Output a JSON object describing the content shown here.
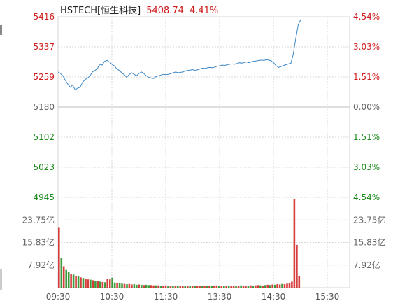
{
  "header": {
    "symbol": "HSTECH[恒生科技]",
    "price": "5408.74",
    "change_pct": "4.41%"
  },
  "colors": {
    "up": "#d01c1c",
    "down": "#1a8a1a",
    "neutral": "#666666",
    "line": "#3b86c5",
    "grid": "#d6d6d6"
  },
  "chart_data": [
    {
      "type": "line",
      "title": "",
      "x_ticks": [
        "09:30",
        "10:30",
        "11:30",
        "13:30",
        "14:30",
        "15:30"
      ],
      "y_ticks_left": [
        "5416",
        "5337",
        "5259",
        "5180",
        "5102",
        "5023",
        "4945"
      ],
      "y_ticks_right": [
        "4.54%",
        "3.03%",
        "1.51%",
        "0.00%",
        "1.51%",
        "3.03%",
        "4.54%"
      ],
      "ylim": [
        4945,
        5416
      ],
      "base_value": 5180,
      "series": [
        {
          "values": [
            5272,
            5268,
            5262,
            5250,
            5240,
            5232,
            5238,
            5225,
            5230,
            5232,
            5245,
            5252,
            5256,
            5262,
            5272,
            5276,
            5280,
            5292,
            5290,
            5300,
            5302,
            5298,
            5292,
            5288,
            5280,
            5276,
            5270,
            5265,
            5258,
            5265,
            5270,
            5266,
            5262,
            5268,
            5272,
            5268,
            5262,
            5258,
            5256,
            5255,
            5260,
            5262,
            5264,
            5266,
            5265,
            5266,
            5268,
            5270,
            5272,
            5270,
            5271,
            5272,
            5275,
            5276,
            5277,
            5278,
            5276,
            5278,
            5280,
            5282,
            5281,
            5283,
            5284,
            5283,
            5285,
            5287,
            5288,
            5290,
            5289,
            5291,
            5292,
            5293,
            5292,
            5294,
            5296,
            5295,
            5297,
            5298,
            5296,
            5299,
            5300,
            5301,
            5302,
            5303,
            5302,
            5304,
            5303,
            5301,
            5296,
            5288,
            5284,
            5286,
            5289,
            5291,
            5293,
            5295,
            5320,
            5360,
            5395,
            5408.74
          ]
        }
      ]
    },
    {
      "type": "bar",
      "title": "",
      "unit": "亿",
      "y_ticks": [
        "23.75亿",
        "15.83亿",
        "7.92亿"
      ],
      "ylim": [
        0,
        31.67
      ],
      "volumes": [
        21.0,
        10.5,
        7.5,
        6.2,
        5.4,
        4.8,
        4.6,
        4.1,
        3.9,
        3.6,
        3.4,
        3.1,
        2.9,
        2.8,
        2.6,
        2.4,
        2.3,
        2.1,
        2.0,
        1.9,
        3.2,
        2.9,
        3.5,
        1.8,
        1.6,
        1.5,
        1.4,
        1.3,
        1.2,
        1.3,
        1.1,
        1.2,
        1.0,
        1.1,
        1.0,
        0.9,
        1.0,
        0.9,
        0.9,
        0.8,
        0.8,
        0.8,
        0.7,
        0.7,
        0.8,
        0.7,
        0.7,
        0.6,
        0.7,
        0.6,
        0.6,
        0.6,
        0.6,
        0.5,
        0.6,
        0.5,
        0.6,
        0.5,
        0.5,
        0.6,
        0.6,
        0.5,
        0.6,
        0.7,
        0.6,
        0.8,
        0.7,
        0.6,
        0.6,
        0.7,
        0.6,
        0.6,
        0.7,
        0.6,
        0.7,
        0.8,
        0.7,
        0.6,
        0.7,
        0.8,
        0.7,
        0.8,
        0.9,
        0.8,
        0.7,
        0.9,
        1.0,
        0.9,
        1.1,
        1.0,
        1.2,
        1.1,
        1.3,
        1.2,
        1.4,
        1.6,
        2.1,
        31.0,
        15.0,
        4.0
      ],
      "directions": [
        "up",
        "down",
        "up",
        "down",
        "down",
        "up",
        "down",
        "up",
        "down",
        "up",
        "down",
        "up",
        "up",
        "down",
        "up",
        "down",
        "up",
        "down",
        "up",
        "down",
        "up",
        "up",
        "down",
        "down",
        "up",
        "down",
        "down",
        "up",
        "down",
        "up",
        "up",
        "down",
        "down",
        "up",
        "down",
        "up",
        "down",
        "down",
        "up",
        "up",
        "down",
        "up",
        "down",
        "up",
        "up",
        "down",
        "up",
        "down",
        "up",
        "down",
        "up",
        "up",
        "down",
        "up",
        "down",
        "up",
        "down",
        "up",
        "up",
        "down",
        "up",
        "down",
        "up",
        "down",
        "up",
        "up",
        "down",
        "up",
        "down",
        "up",
        "down",
        "up",
        "up",
        "down",
        "up",
        "down",
        "up",
        "up",
        "down",
        "up",
        "down",
        "up",
        "up",
        "down",
        "up",
        "down",
        "up",
        "down",
        "up",
        "down",
        "up",
        "up",
        "down",
        "up",
        "up",
        "up",
        "up",
        "up",
        "up",
        "up"
      ]
    }
  ]
}
